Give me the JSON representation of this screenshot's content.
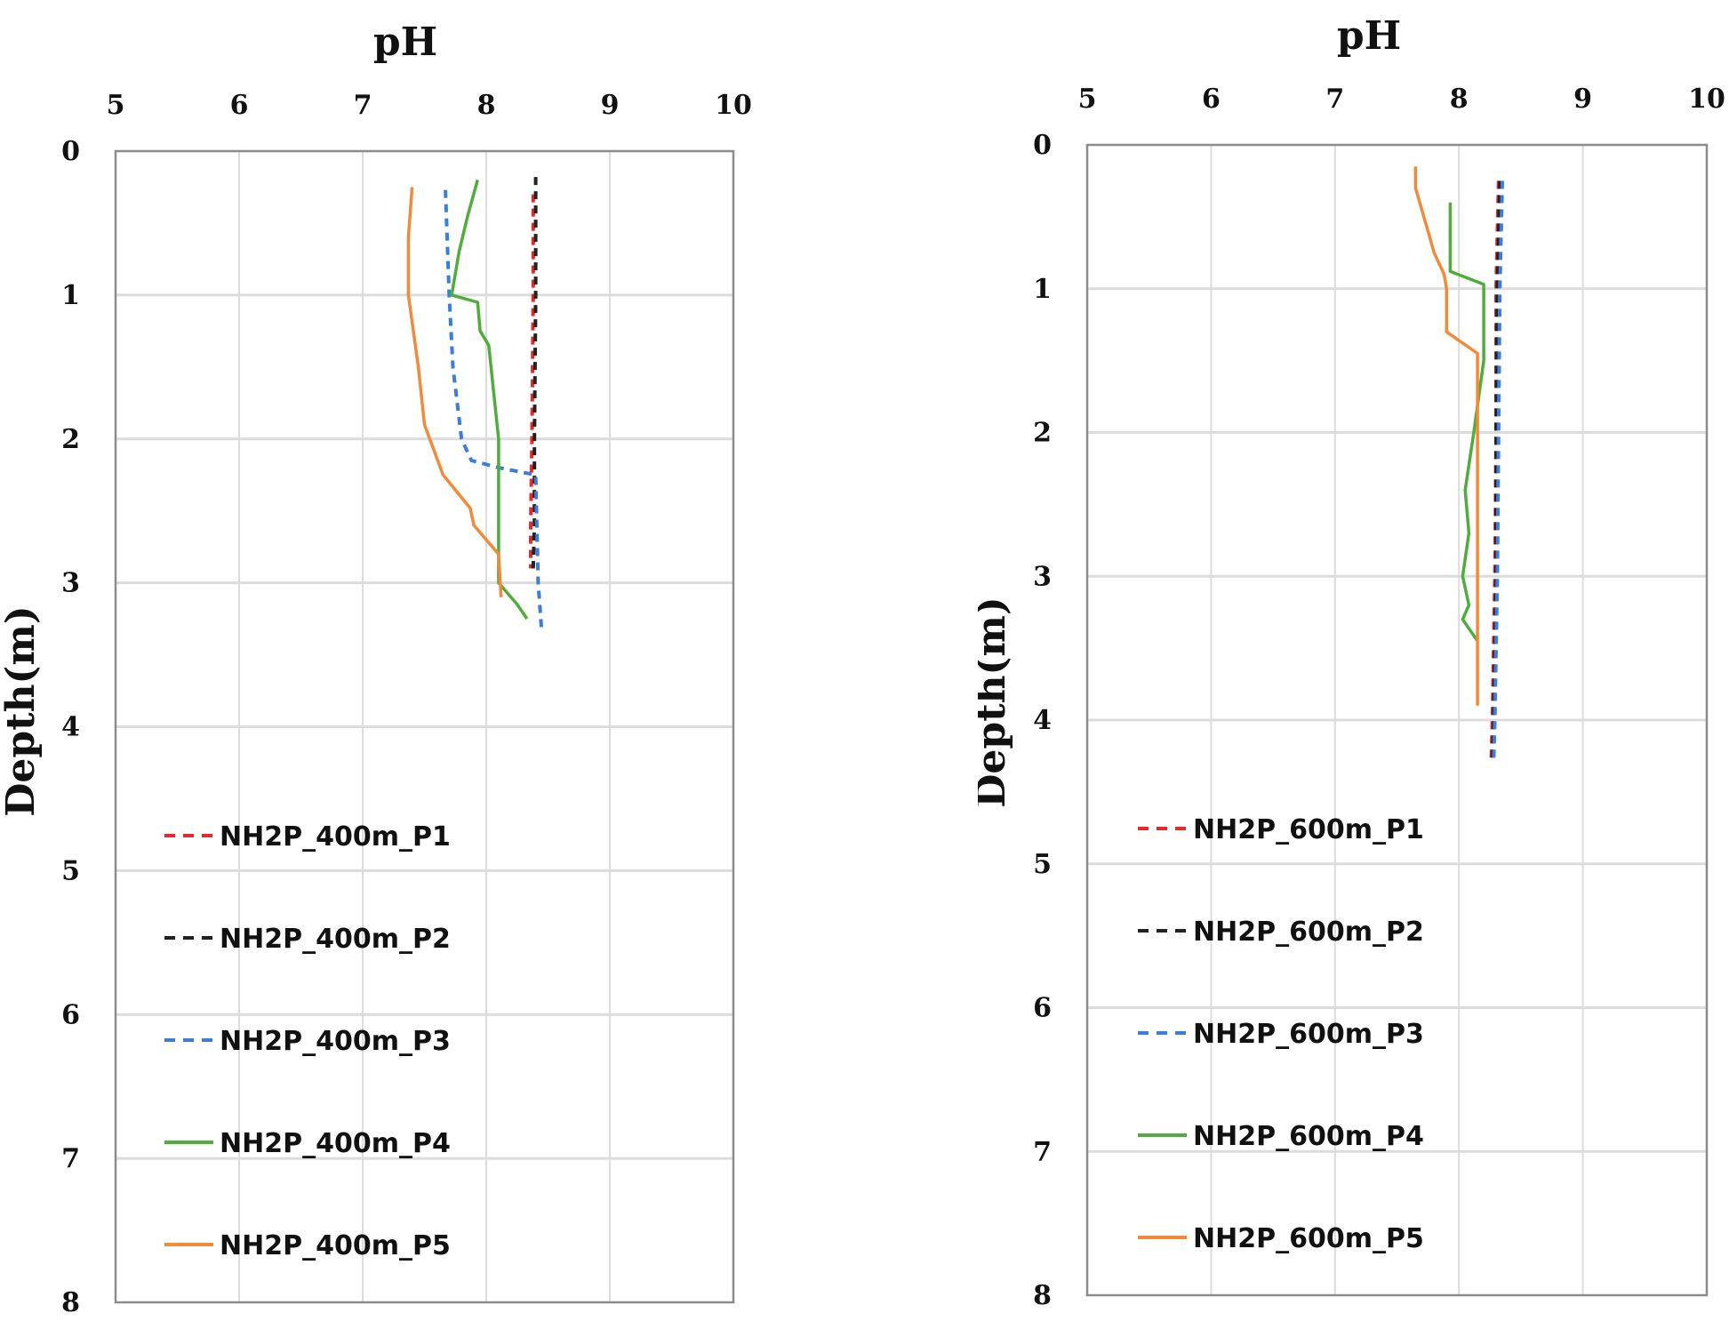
{
  "chart_data": [
    {
      "type": "line",
      "orientation": "depth-profile",
      "title": "",
      "xlabel": "pH",
      "ylabel": "Depth(m)",
      "xlim": [
        5,
        10
      ],
      "ylim": [
        0,
        8
      ],
      "x_ticks": [
        5,
        6,
        7,
        8,
        9,
        10
      ],
      "y_ticks": [
        0,
        1,
        2,
        3,
        4,
        5,
        6,
        7,
        8
      ],
      "grid": true,
      "legend_position": "lower-left inside",
      "series": [
        {
          "name": "NH2P_400m_P1",
          "color": "#e8282b",
          "dash": "dashed",
          "points": [
            [
              8.38,
              0.3
            ],
            [
              8.38,
              1.0
            ],
            [
              8.37,
              2.0
            ],
            [
              8.36,
              2.6
            ],
            [
              8.36,
              2.9
            ]
          ]
        },
        {
          "name": "NH2P_400m_P2",
          "color": "#222222",
          "dash": "dashed",
          "points": [
            [
              8.4,
              0.18
            ],
            [
              8.4,
              1.0
            ],
            [
              8.39,
              2.0
            ],
            [
              8.39,
              2.6
            ],
            [
              8.38,
              2.9
            ]
          ]
        },
        {
          "name": "NH2P_400m_P3",
          "color": "#3b7dd8",
          "dash": "dashed",
          "points": [
            [
              7.67,
              0.27
            ],
            [
              7.7,
              1.0
            ],
            [
              7.73,
              1.5
            ],
            [
              7.8,
              2.0
            ],
            [
              7.88,
              2.15
            ],
            [
              8.1,
              2.2
            ],
            [
              8.4,
              2.25
            ],
            [
              8.42,
              3.0
            ],
            [
              8.45,
              3.35
            ]
          ]
        },
        {
          "name": "NH2P_400m_P4",
          "color": "#4fae3b",
          "dash": "solid",
          "points": [
            [
              7.93,
              0.2
            ],
            [
              7.85,
              0.45
            ],
            [
              7.78,
              0.7
            ],
            [
              7.72,
              1.0
            ],
            [
              7.93,
              1.05
            ],
            [
              7.95,
              1.25
            ],
            [
              8.02,
              1.35
            ],
            [
              8.1,
              2.0
            ],
            [
              8.1,
              3.0
            ],
            [
              8.25,
              3.15
            ],
            [
              8.33,
              3.25
            ]
          ]
        },
        {
          "name": "NH2P_400m_P5",
          "color": "#f28a3c",
          "dash": "solid",
          "points": [
            [
              7.4,
              0.25
            ],
            [
              7.37,
              0.6
            ],
            [
              7.37,
              1.0
            ],
            [
              7.45,
              1.5
            ],
            [
              7.5,
              1.9
            ],
            [
              7.65,
              2.25
            ],
            [
              7.87,
              2.48
            ],
            [
              7.9,
              2.6
            ],
            [
              8.1,
              2.8
            ],
            [
              8.12,
              3.1
            ]
          ]
        }
      ]
    },
    {
      "type": "line",
      "orientation": "depth-profile",
      "title": "",
      "xlabel": "pH",
      "ylabel": "Depth(m)",
      "xlim": [
        5,
        10
      ],
      "ylim": [
        0,
        8
      ],
      "x_ticks": [
        5,
        6,
        7,
        8,
        9,
        10
      ],
      "y_ticks": [
        0,
        1,
        2,
        3,
        4,
        5,
        6,
        7,
        8
      ],
      "grid": true,
      "legend_position": "lower-left inside",
      "series": [
        {
          "name": "NH2P_600m_P1",
          "color": "#e8282b",
          "dash": "dashed",
          "points": [
            [
              8.32,
              0.25
            ],
            [
              8.3,
              1.0
            ],
            [
              8.3,
              2.0
            ],
            [
              8.29,
              3.0
            ],
            [
              8.27,
              4.0
            ],
            [
              8.26,
              4.3
            ]
          ]
        },
        {
          "name": "NH2P_600m_P2",
          "color": "#222222",
          "dash": "dashed",
          "points": [
            [
              8.33,
              0.25
            ],
            [
              8.31,
              1.0
            ],
            [
              8.3,
              2.0
            ],
            [
              8.3,
              3.0
            ],
            [
              8.28,
              4.0
            ],
            [
              8.27,
              4.3
            ]
          ]
        },
        {
          "name": "NH2P_600m_P3",
          "color": "#3b7dd8",
          "dash": "dashed",
          "points": [
            [
              8.35,
              0.25
            ],
            [
              8.33,
              1.0
            ],
            [
              8.32,
              2.0
            ],
            [
              8.31,
              3.0
            ],
            [
              8.29,
              4.0
            ],
            [
              8.28,
              4.3
            ]
          ]
        },
        {
          "name": "NH2P_600m_P4",
          "color": "#4fae3b",
          "dash": "solid",
          "points": [
            [
              7.93,
              0.4
            ],
            [
              7.93,
              0.88
            ],
            [
              8.2,
              0.97
            ],
            [
              8.2,
              1.5
            ],
            [
              8.12,
              2.0
            ],
            [
              8.05,
              2.4
            ],
            [
              8.08,
              2.7
            ],
            [
              8.03,
              3.0
            ],
            [
              8.08,
              3.2
            ],
            [
              8.03,
              3.3
            ],
            [
              8.15,
              3.45
            ]
          ]
        },
        {
          "name": "NH2P_600m_P5",
          "color": "#f28a3c",
          "dash": "solid",
          "points": [
            [
              7.65,
              0.15
            ],
            [
              7.65,
              0.3
            ],
            [
              7.7,
              0.45
            ],
            [
              7.75,
              0.6
            ],
            [
              7.8,
              0.75
            ],
            [
              7.88,
              0.9
            ],
            [
              7.9,
              1.0
            ],
            [
              7.9,
              1.3
            ],
            [
              8.15,
              1.45
            ],
            [
              8.15,
              2.0
            ],
            [
              8.15,
              3.0
            ],
            [
              8.15,
              3.9
            ]
          ]
        }
      ]
    }
  ]
}
